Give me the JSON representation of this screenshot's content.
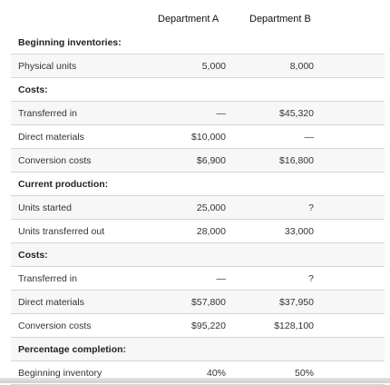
{
  "columns": {
    "a": "Department A",
    "b": "Department B"
  },
  "rows": [
    {
      "label": "Beginning inventories:",
      "a": "",
      "b": "",
      "section": true
    },
    {
      "label": "Physical units",
      "a": "5,000",
      "b": "8,000"
    },
    {
      "label": "Costs:",
      "a": "",
      "b": "",
      "section": true
    },
    {
      "label": "Transferred in",
      "a": "—",
      "b": "$45,320"
    },
    {
      "label": "Direct materials",
      "a": "$10,000",
      "b": "—"
    },
    {
      "label": "Conversion costs",
      "a": "$6,900",
      "b": "$16,800"
    },
    {
      "label": "Current production:",
      "a": "",
      "b": "",
      "section": true
    },
    {
      "label": "Units started",
      "a": "25,000",
      "b": "?"
    },
    {
      "label": "Units transferred out",
      "a": "28,000",
      "b": "33,000"
    },
    {
      "label": "Costs:",
      "a": "",
      "b": "",
      "section": true
    },
    {
      "label": "Transferred in",
      "a": "—",
      "b": "?"
    },
    {
      "label": "Direct materials",
      "a": "$57,800",
      "b": "$37,950"
    },
    {
      "label": "Conversion costs",
      "a": "$95,220",
      "b": "$128,100"
    },
    {
      "label": "Percentage completion:",
      "a": "",
      "b": "",
      "section": true
    },
    {
      "label": "Beginning inventory",
      "a": "40%",
      "b": "50%"
    }
  ]
}
